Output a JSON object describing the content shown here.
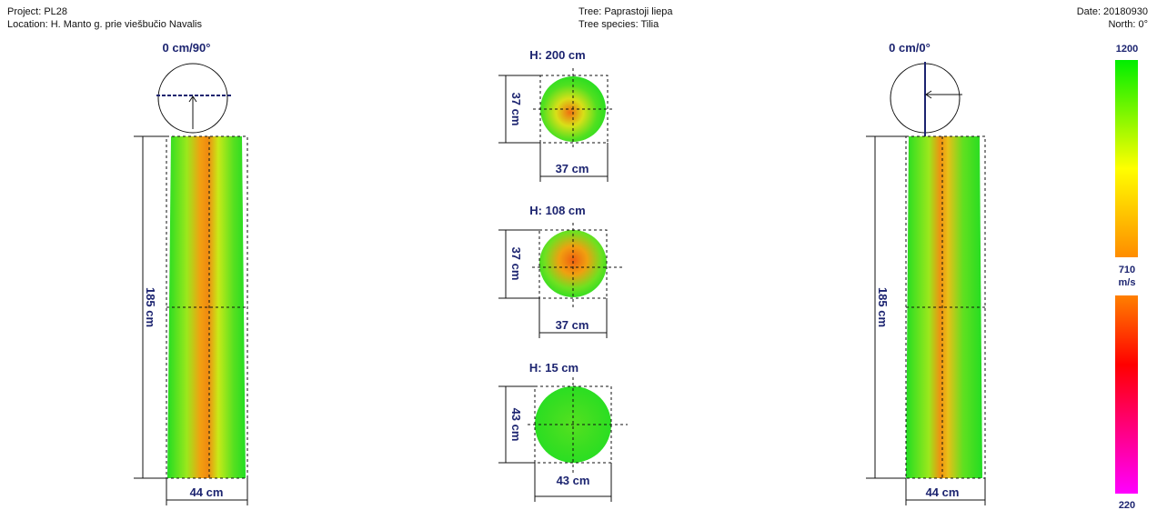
{
  "header": {
    "project": "Project: PL28",
    "location": "Location: H. Manto g. prie viešbučio Navalis",
    "tree": "Tree: Paprastoji liepa",
    "species": "Tree species: Tilia",
    "date": "Date: 20180930",
    "north": "North: 0°"
  },
  "left_profile": {
    "label": "0 cm/90°",
    "height": "185 cm",
    "width": "44 cm"
  },
  "slices": [
    {
      "label": "H: 200 cm",
      "depth": "37 cm",
      "width": "37 cm"
    },
    {
      "label": "H: 108 cm",
      "depth": "37 cm",
      "width": "37 cm"
    },
    {
      "label": "H: 15 cm",
      "depth": "43 cm",
      "width": "43 cm"
    }
  ],
  "right_profile": {
    "label": "0 cm/0°",
    "height": "185 cm",
    "width": "44 cm"
  },
  "colorbar": {
    "max": "1200",
    "mid": "710",
    "unit": "m/s",
    "min": "220"
  }
}
